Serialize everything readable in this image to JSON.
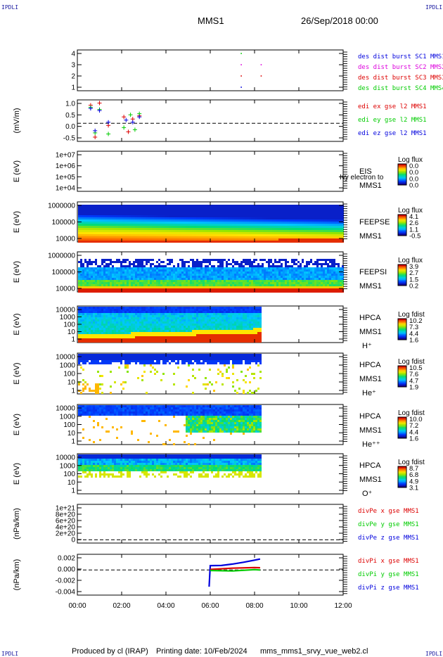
{
  "corner_tag": "IPDLI",
  "header": {
    "title": "MMS1",
    "date": "26/Sep/2018 00:00"
  },
  "footer": {
    "produced_by": "Produced by cl (IRAP)",
    "printing_date": "Printing date: 10/Feb/2024",
    "filename": "mms_mms1_srvy_vue_web2.cl"
  },
  "colors": {
    "black": "#000000",
    "blue": "#0000dd",
    "magenta": "#dd00dd",
    "red": "#dd0000",
    "green": "#00cc00"
  },
  "chart_data": {
    "type": "heatmap",
    "x_ticks": [
      "00:00",
      "02:00",
      "04:00",
      "06:00",
      "08:00",
      "10:00",
      "12:00"
    ],
    "x_range_hours": [
      0,
      12
    ],
    "panels": [
      {
        "id": "dist",
        "type": "scatter",
        "ylabel": "",
        "yticks": [
          "4",
          "3",
          "2",
          "1"
        ],
        "ylim": [
          0.5,
          4.5
        ],
        "legend": [
          {
            "text": "des dist burst SC1 MMS1",
            "color": "blue"
          },
          {
            "text": "des dist burst SC2 MMS2",
            "color": "magenta"
          },
          {
            "text": "des dist burst SC3 MMS3",
            "color": "red"
          },
          {
            "text": "des dist burst SC4 MMS4",
            "color": "green"
          }
        ],
        "points": [
          {
            "x": 7.4,
            "y": 4,
            "color": "green"
          },
          {
            "x": 7.4,
            "y": 3,
            "color": "magenta"
          },
          {
            "x": 7.4,
            "y": 2,
            "color": "red"
          },
          {
            "x": 7.4,
            "y": 1,
            "color": "blue"
          },
          {
            "x": 8.3,
            "y": 3,
            "color": "magenta"
          },
          {
            "x": 8.3,
            "y": 2,
            "color": "red"
          }
        ]
      },
      {
        "id": "edi",
        "type": "line",
        "ylabel": "(mV/m)",
        "yticks": [
          "1.0",
          "0.5",
          "0.0",
          "-0.5"
        ],
        "ylim": [
          -0.85,
          1.1
        ],
        "legend": [
          {
            "text": "edi ex gse l2 MMS1",
            "color": "red"
          },
          {
            "text": "edi ey gse l2 MMS1",
            "color": "green"
          },
          {
            "text": "edi ez gse l2 MMS1",
            "color": "blue"
          }
        ],
        "series": [
          {
            "name": "edi ex gse l2 MMS1",
            "color": "red",
            "points": [
              [
                0.6,
                0.85
              ],
              [
                0.8,
                -0.65
              ],
              [
                1.0,
                0.95
              ],
              [
                1.4,
                -0.1
              ],
              [
                2.1,
                0.3
              ],
              [
                2.3,
                -0.4
              ],
              [
                2.5,
                0.2
              ],
              [
                2.8,
                0.35
              ]
            ]
          },
          {
            "name": "edi ey gse l2 MMS1",
            "color": "green",
            "points": [
              [
                0.6,
                0.75
              ],
              [
                0.8,
                -0.45
              ],
              [
                1.0,
                0.65
              ],
              [
                1.4,
                -0.5
              ],
              [
                2.1,
                -0.2
              ],
              [
                2.4,
                0.4
              ],
              [
                2.6,
                -0.3
              ],
              [
                2.8,
                0.45
              ]
            ]
          },
          {
            "name": "edi ez gse l2 MMS1",
            "color": "blue",
            "points": [
              [
                0.6,
                0.7
              ],
              [
                0.8,
                -0.35
              ],
              [
                1.0,
                0.6
              ],
              [
                1.4,
                0.05
              ],
              [
                2.2,
                0.15
              ],
              [
                2.5,
                0.05
              ],
              [
                2.8,
                0.3
              ]
            ]
          }
        ]
      },
      {
        "id": "eis",
        "type": "heatmap",
        "ylabel": "E (eV)",
        "yticks": [
          "1e+07",
          "1e+06",
          "1e+05",
          "1e+04"
        ],
        "ylim_log": [
          4,
          7
        ],
        "side": [
          "EIS",
          "MMS1"
        ],
        "overlay": "Ivy electron to",
        "cb_title": "Log flux",
        "cb_ticks": [
          "0.0",
          "0.0",
          "0.0",
          "0.0"
        ],
        "data_end_hour": 0,
        "levels": []
      },
      {
        "id": "feepse",
        "type": "heatmap",
        "ylabel": "E (eV)",
        "yticks": [
          "1000000",
          "100000",
          "10000"
        ],
        "ylim_log": [
          4,
          6.1
        ],
        "side": [
          "FEEPSE",
          "MMS1"
        ],
        "cb_title": "Log flux",
        "cb_ticks": [
          "4.1",
          "2.6",
          "1.1",
          "-0.5"
        ],
        "data_end_hour": 12,
        "cmin": -0.5,
        "cmax": 4.1
      },
      {
        "id": "feepsi",
        "type": "heatmap",
        "ylabel": "E (eV)",
        "yticks": [
          "1000000",
          "100000",
          "10000"
        ],
        "ylim_log": [
          4,
          6.1
        ],
        "side": [
          "FEEPSI",
          "MMS1"
        ],
        "cb_title": "Log flux",
        "cb_ticks": [
          "3.9",
          "2.7",
          "1.5",
          "0.2"
        ],
        "data_end_hour": 12,
        "cmin": 0.2,
        "cmax": 3.9
      },
      {
        "id": "hpca_h",
        "type": "heatmap",
        "ylabel": "E (eV)",
        "yticks": [
          "10000",
          "1000",
          "100",
          "10",
          "1"
        ],
        "ylim_log": [
          0,
          4.6
        ],
        "side": [
          "HPCA",
          "MMS1",
          "H⁺"
        ],
        "cb_title": "Log fdist",
        "cb_ticks": [
          "10.2",
          "7.3",
          "4.4",
          "1.6"
        ],
        "data_end_hour": 8.25,
        "cmin": 1.6,
        "cmax": 10.2
      },
      {
        "id": "hpca_he",
        "type": "heatmap",
        "ylabel": "E (eV)",
        "yticks": [
          "10000",
          "1000",
          "100",
          "10",
          "1"
        ],
        "ylim_log": [
          0,
          4.6
        ],
        "side": [
          "HPCA",
          "MMS1",
          "He⁺"
        ],
        "cb_title": "Log fdist",
        "cb_ticks": [
          "10.5",
          "7.6",
          "4.7",
          "1.9"
        ],
        "data_end_hour": 8.25,
        "cmin": 1.9,
        "cmax": 10.5
      },
      {
        "id": "hpca_hepp",
        "type": "heatmap",
        "ylabel": "E (eV)",
        "yticks": [
          "10000",
          "1000",
          "100",
          "10",
          "1"
        ],
        "ylim_log": [
          0,
          4.6
        ],
        "side": [
          "HPCA",
          "MMS1",
          "He⁺⁺"
        ],
        "cb_title": "Log fdist",
        "cb_ticks": [
          "10.0",
          "7.2",
          "4.4",
          "1.6"
        ],
        "data_end_hour": 8.25,
        "cmin": 1.6,
        "cmax": 10.0
      },
      {
        "id": "hpca_o",
        "type": "heatmap",
        "ylabel": "E (eV)",
        "yticks": [
          "10000",
          "1000",
          "100",
          "10",
          "1"
        ],
        "ylim_log": [
          0,
          4.6
        ],
        "side": [
          "HPCA",
          "MMS1",
          "O⁺"
        ],
        "cb_title": "Log fdist",
        "cb_ticks": [
          "8.7",
          "6.8",
          "4.9",
          "3.1"
        ],
        "data_end_hour": 8.25,
        "cmin": 3.1,
        "cmax": 8.7
      },
      {
        "id": "divpe",
        "type": "line",
        "ylabel": "(nPa/km)",
        "yticks": [
          "1e+21",
          "8e+20",
          "6e+20",
          "4e+20",
          "2e+20",
          "0"
        ],
        "ylim": [
          -1e+20,
          1.1e+21
        ],
        "legend": [
          {
            "text": "divPe x gse MMS1",
            "color": "red"
          },
          {
            "text": "divPe y gse MMS1",
            "color": "green"
          },
          {
            "text": "divPe z gse MMS1",
            "color": "blue"
          }
        ],
        "series": []
      },
      {
        "id": "divpi",
        "type": "line",
        "ylabel": "(nPa/km)",
        "yticks": [
          "0.002",
          "0.000",
          "-0.002",
          "-0.004"
        ],
        "ylim": [
          -0.0045,
          0.0028
        ],
        "legend": [
          {
            "text": "divPi x gse MMS1",
            "color": "red"
          },
          {
            "text": "divPi y gse MMS1",
            "color": "green"
          },
          {
            "text": "divPi z gse MMS1",
            "color": "blue"
          }
        ],
        "series": [
          {
            "name": "divPi z gse MMS1",
            "color": "blue",
            "points": [
              [
                5.95,
                -0.003
              ],
              [
                6.0,
                0.0008
              ],
              [
                6.5,
                0.0009
              ],
              [
                7.0,
                0.0011
              ],
              [
                7.5,
                0.0013
              ],
              [
                8.0,
                0.0017
              ],
              [
                8.25,
                0.0018
              ]
            ]
          },
          {
            "name": "divPi x gse MMS1",
            "color": "red",
            "points": [
              [
                6.0,
                0.0001
              ],
              [
                7.0,
                0.0002
              ],
              [
                8.0,
                0.0003
              ],
              [
                8.25,
                0.0003
              ]
            ]
          },
          {
            "name": "divPi y gse MMS1",
            "color": "green",
            "points": [
              [
                6.0,
                -0.0001
              ],
              [
                7.0,
                -0.0001
              ],
              [
                8.0,
                0.0
              ],
              [
                8.25,
                0.0
              ]
            ]
          }
        ]
      }
    ]
  }
}
